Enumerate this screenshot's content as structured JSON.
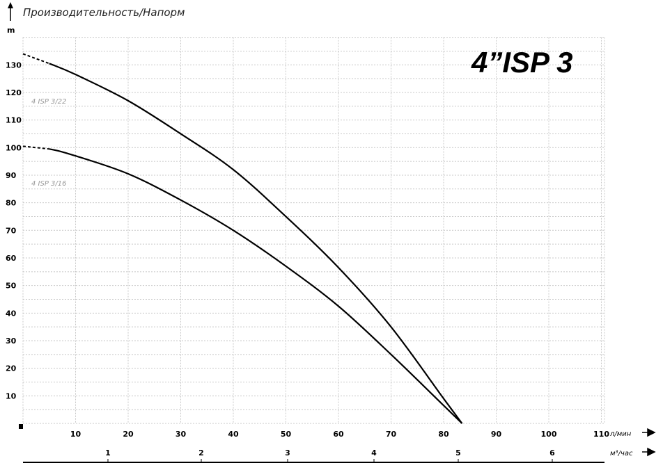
{
  "chart_data": {
    "type": "line",
    "title": "Производительность/Напорм",
    "badge": "4”ISP 3",
    "ylabel": "m",
    "xlabel": "л/мин",
    "x2label": "м³/час",
    "xlim": [
      0,
      110
    ],
    "ylim": [
      0,
      140
    ],
    "grid": true,
    "xticks": [
      10,
      20,
      30,
      40,
      50,
      60,
      70,
      80,
      90,
      100,
      110
    ],
    "yticks": [
      10,
      20,
      30,
      40,
      50,
      60,
      70,
      80,
      90,
      100,
      110,
      120,
      130
    ],
    "x2ticks": [
      1,
      2,
      3,
      4,
      5,
      6
    ],
    "series": [
      {
        "name": "4 ISP 3/22",
        "x": [
          0,
          5,
          10,
          20,
          30,
          40,
          50,
          60,
          70,
          80,
          83.5
        ],
        "y": [
          134,
          130.5,
          126.5,
          117,
          105,
          92,
          75,
          56.5,
          35,
          9,
          0
        ]
      },
      {
        "name": "4 ISP 3/16",
        "x": [
          0,
          5,
          10,
          20,
          30,
          40,
          50,
          60,
          70,
          80,
          83.5
        ],
        "y": [
          100.5,
          99.5,
          97,
          90.5,
          81,
          70,
          57,
          42.5,
          25,
          6.5,
          0
        ]
      }
    ]
  }
}
